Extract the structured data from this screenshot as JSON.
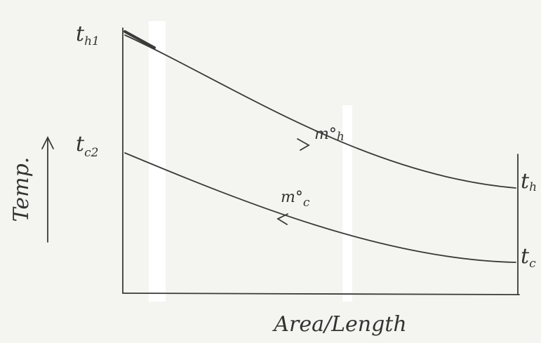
{
  "axes": {
    "y_label": "Temp.",
    "x_label": "Area/Length"
  },
  "labels": {
    "hot_in": {
      "main": "t",
      "sub": "h1"
    },
    "cold_out": {
      "main": "t",
      "sub": "c2"
    },
    "hot_flow": {
      "main": "m°",
      "sub": "h"
    },
    "cold_flow": {
      "main": "m°",
      "sub": "c"
    },
    "hot_out": {
      "main": "t",
      "sub": "h"
    },
    "cold_in": {
      "main": "t",
      "sub": "c"
    }
  }
}
